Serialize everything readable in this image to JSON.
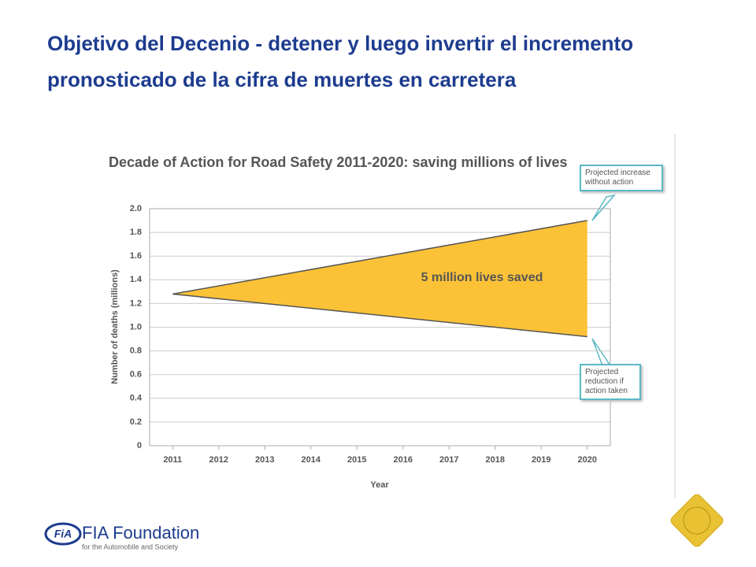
{
  "slide_title": "Objetivo del Decenio - detener y luego invertir el incremento pronosticado de la cifra de muertes en carretera",
  "chart_data": {
    "type": "line",
    "title": "Decade of Action for Road Safety 2011-2020: saving millions of lives",
    "xlabel": "Year",
    "ylabel": "Number of deaths (millions)",
    "x": [
      2011,
      2020
    ],
    "series": [
      {
        "name": "Projected increase without action",
        "color": "#555555",
        "values": [
          1.28,
          1.9
        ]
      },
      {
        "name": "Projected reduction if action taken",
        "color": "#555555",
        "values": [
          1.28,
          0.92
        ]
      }
    ],
    "fill_between_color": "#fcc237",
    "annotation": "5 million lives saved",
    "xlim": [
      2010.5,
      2020.5
    ],
    "xticks": [
      2011,
      2012,
      2013,
      2014,
      2015,
      2016,
      2017,
      2018,
      2019,
      2020
    ],
    "ylim": [
      0,
      2
    ],
    "yticks": [
      0,
      0.2,
      0.4,
      0.6,
      0.8,
      {
        "value": 1,
        "label": "1.0"
      },
      1.2,
      1.4,
      1.6,
      1.8,
      {
        "value": 2,
        "label": "2.0"
      }
    ],
    "grid": true
  },
  "logo": {
    "mark": "FiA",
    "name": "FIA Foundation",
    "tagline": "for the Automobile and Society"
  }
}
